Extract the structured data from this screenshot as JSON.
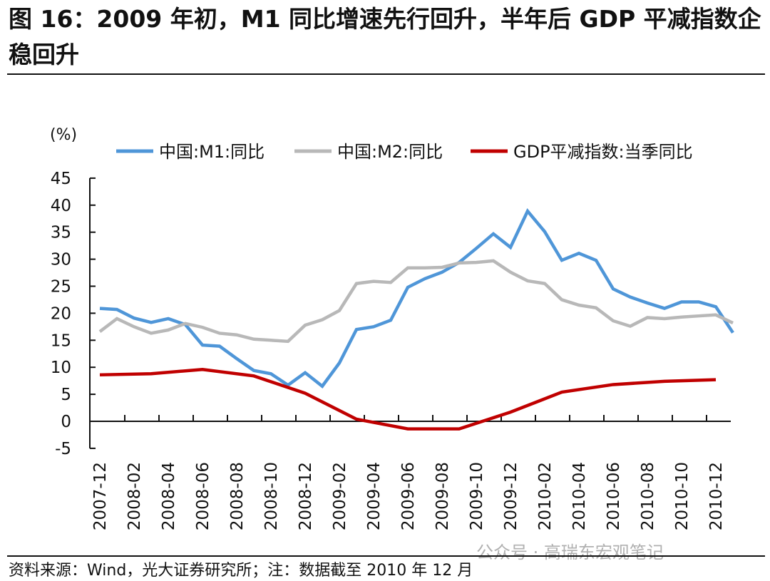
{
  "title": "图 16：2009 年初，M1 同比增速先行回升，半年后 GDP 平减指数企稳回升",
  "source": "资料来源：Wind，光大证券研究所；注：数据截至 2010 年 12 月",
  "watermark": "公众号 · 高瑞东宏观笔记",
  "chart_data": {
    "type": "line",
    "title": "",
    "ylabel": "(%)",
    "xlabel": "",
    "ylim": [
      -5,
      45
    ],
    "yticks": [
      -5,
      0,
      5,
      10,
      15,
      20,
      25,
      30,
      35,
      40,
      45
    ],
    "xtick_labels": [
      "2007-12",
      "2008-02",
      "2008-04",
      "2008-06",
      "2008-08",
      "2008-10",
      "2008-12",
      "2009-02",
      "2009-04",
      "2009-06",
      "2009-08",
      "2009-10",
      "2009-12",
      "2010-02",
      "2010-04",
      "2010-06",
      "2010-08",
      "2010-10",
      "2010-12"
    ],
    "legend_position": "top",
    "grid": false,
    "x": [
      "2007-12",
      "2008-01",
      "2008-02",
      "2008-03",
      "2008-04",
      "2008-05",
      "2008-06",
      "2008-07",
      "2008-08",
      "2008-09",
      "2008-10",
      "2008-11",
      "2008-12",
      "2009-01",
      "2009-02",
      "2009-03",
      "2009-04",
      "2009-05",
      "2009-06",
      "2009-07",
      "2009-08",
      "2009-09",
      "2009-10",
      "2009-11",
      "2009-12",
      "2010-01",
      "2010-02",
      "2010-03",
      "2010-04",
      "2010-05",
      "2010-06",
      "2010-07",
      "2010-08",
      "2010-09",
      "2010-10",
      "2010-11",
      "2010-12",
      "2011-01"
    ],
    "series": [
      {
        "name": "中国:M1:同比",
        "color": "#4f96d8",
        "values": [
          20.9,
          20.7,
          19.1,
          18.3,
          19.0,
          17.9,
          14.1,
          13.9,
          11.6,
          9.4,
          8.8,
          6.7,
          9.0,
          6.5,
          10.8,
          17.0,
          17.5,
          18.7,
          24.8,
          26.4,
          27.6,
          29.4,
          32.0,
          34.7,
          32.2,
          38.9,
          35.1,
          29.8,
          31.1,
          29.8,
          24.5,
          23.0,
          21.9,
          20.9,
          22.1,
          22.1,
          21.2,
          16.4
        ]
      },
      {
        "name": "中国:M2:同比",
        "color": "#b8b8b8",
        "values": [
          16.6,
          19.0,
          17.5,
          16.3,
          16.9,
          18.1,
          17.4,
          16.3,
          16.0,
          15.2,
          15.0,
          14.8,
          17.8,
          18.8,
          20.5,
          25.5,
          25.9,
          25.7,
          28.4,
          28.4,
          28.5,
          29.3,
          29.4,
          29.7,
          27.6,
          26.0,
          25.5,
          22.5,
          21.5,
          21.0,
          18.6,
          17.6,
          19.2,
          19.0,
          19.3,
          19.5,
          19.7,
          18.2
        ]
      },
      {
        "name": "GDP平减指数:当季同比",
        "color": "#c00000",
        "x": [
          "2007-12",
          "2008-03",
          "2008-06",
          "2008-09",
          "2008-12",
          "2009-03",
          "2009-06",
          "2009-09",
          "2009-12",
          "2010-03",
          "2010-06",
          "2010-09",
          "2010-12"
        ],
        "values": [
          8.6,
          8.8,
          9.6,
          8.4,
          5.2,
          0.4,
          -1.4,
          -1.4,
          1.7,
          5.4,
          6.8,
          7.4,
          7.7
        ]
      }
    ]
  }
}
